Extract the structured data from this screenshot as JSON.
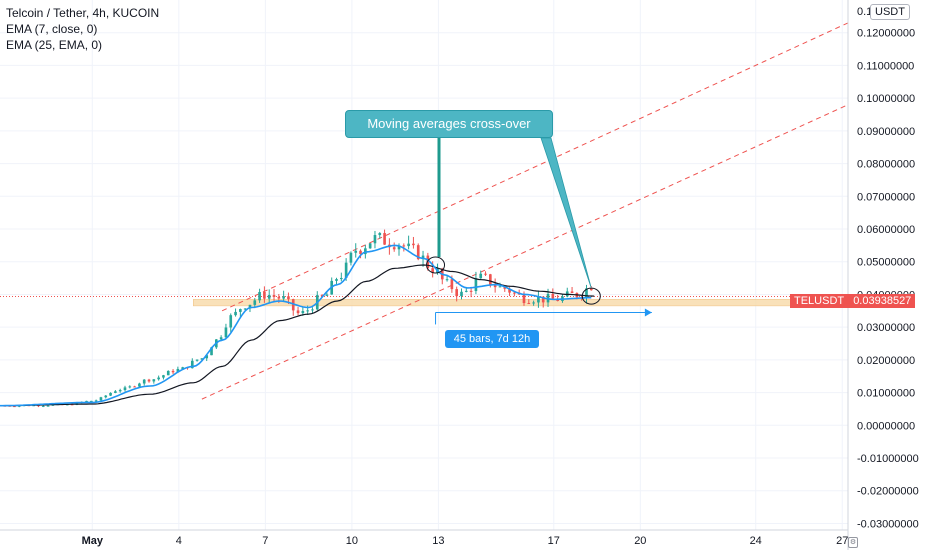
{
  "legend": {
    "symbol": "Telcoin / Tether, 4h, KUCOIN",
    "ema_fast": "EMA (7, close, 0)",
    "ema_slow": "EMA (25, EMA, 0)"
  },
  "currency_label": "USDT",
  "price_tag": {
    "symbol": "TELUSDT",
    "value": "0.03938527"
  },
  "annotations": {
    "callout": "Moving averages cross-over",
    "range_measure": "45 bars, 7d 12h"
  },
  "colors": {
    "up": "#26a69a",
    "down": "#ef5350",
    "ema_fast": "#2196f3",
    "ema_slow": "#131722",
    "channel": "#ef5350",
    "support_zone": "#f8d9a8",
    "callout_bg": "#4db6c4",
    "measure": "#2196f3"
  },
  "chart_data": {
    "type": "candlestick",
    "y_axis": {
      "range": [
        -0.032,
        0.13
      ],
      "tick_values": [
        0.12,
        0.11,
        0.1,
        0.09,
        0.08,
        0.07,
        0.06,
        0.05,
        0.04,
        0.03,
        0.02,
        0.01,
        0.0,
        -0.01,
        -0.02,
        -0.03
      ],
      "tick_labels": [
        "0.12000000",
        "0.11000000",
        "0.10000000",
        "0.09000000",
        "0.08000000",
        "0.07000000",
        "0.06000000",
        "0.05000000",
        "0.04000000",
        "0.03000000",
        "0.02000000",
        "0.01000000",
        "0.00000000",
        "-0.01000000",
        "-0.02000000",
        "-0.03000000"
      ],
      "top_partial_label": "0.1"
    },
    "x_axis": {
      "range_days": [
        -2.2,
        27.2
      ],
      "ticks": [
        {
          "day": 1,
          "label": "May"
        },
        {
          "day": 4,
          "label": "4"
        },
        {
          "day": 7,
          "label": "7"
        },
        {
          "day": 10,
          "label": "10"
        },
        {
          "day": 13,
          "label": "13"
        },
        {
          "day": 17,
          "label": "17"
        },
        {
          "day": 20,
          "label": "20"
        },
        {
          "day": 24,
          "label": "24"
        },
        {
          "day": 27,
          "label": "27"
        }
      ]
    },
    "price_anchors": [
      [
        -2.2,
        0.006
      ],
      [
        0.0,
        0.0062
      ],
      [
        1.0,
        0.0075
      ],
      [
        2.0,
        0.011
      ],
      [
        3.0,
        0.014
      ],
      [
        4.0,
        0.017
      ],
      [
        4.8,
        0.0205
      ],
      [
        5.3,
        0.026
      ],
      [
        5.8,
        0.033
      ],
      [
        6.3,
        0.037
      ],
      [
        7.0,
        0.04
      ],
      [
        7.5,
        0.039
      ],
      [
        8.2,
        0.034
      ],
      [
        9.0,
        0.039
      ],
      [
        9.6,
        0.046
      ],
      [
        10.2,
        0.054
      ],
      [
        10.8,
        0.057
      ],
      [
        11.5,
        0.056
      ],
      [
        12.2,
        0.053
      ],
      [
        12.8,
        0.048
      ],
      [
        13.3,
        0.043
      ],
      [
        13.8,
        0.04
      ],
      [
        14.5,
        0.045
      ],
      [
        15.2,
        0.042
      ],
      [
        16.0,
        0.039
      ],
      [
        17.0,
        0.0385
      ],
      [
        17.8,
        0.04
      ],
      [
        18.4,
        0.043
      ]
    ],
    "ema7_anchors": [
      [
        -2.2,
        0.006
      ],
      [
        1.0,
        0.007
      ],
      [
        3.0,
        0.012
      ],
      [
        4.5,
        0.018
      ],
      [
        5.5,
        0.026
      ],
      [
        6.5,
        0.036
      ],
      [
        7.5,
        0.038
      ],
      [
        8.5,
        0.036
      ],
      [
        9.5,
        0.043
      ],
      [
        10.5,
        0.053
      ],
      [
        11.5,
        0.055
      ],
      [
        12.5,
        0.051
      ],
      [
        13.2,
        0.046
      ],
      [
        14.0,
        0.042
      ],
      [
        15.0,
        0.043
      ],
      [
        16.0,
        0.04
      ],
      [
        17.0,
        0.0385
      ],
      [
        18.3,
        0.039
      ]
    ],
    "ema25_anchors": [
      [
        -2.2,
        0.006
      ],
      [
        1.0,
        0.0065
      ],
      [
        3.0,
        0.0095
      ],
      [
        4.5,
        0.013
      ],
      [
        5.5,
        0.018
      ],
      [
        6.5,
        0.026
      ],
      [
        7.5,
        0.032
      ],
      [
        8.5,
        0.034
      ],
      [
        9.5,
        0.038
      ],
      [
        10.5,
        0.044
      ],
      [
        11.5,
        0.048
      ],
      [
        12.5,
        0.049
      ],
      [
        13.5,
        0.047
      ],
      [
        14.5,
        0.0445
      ],
      [
        15.5,
        0.0425
      ],
      [
        16.5,
        0.041
      ],
      [
        17.5,
        0.04
      ],
      [
        18.4,
        0.0395
      ]
    ],
    "channel_upper": {
      "from": [
        5.5,
        0.035
      ],
      "to": [
        27.2,
        0.123
      ]
    },
    "channel_lower": {
      "from": [
        4.8,
        0.008
      ],
      "to": [
        27.2,
        0.098
      ]
    },
    "support_zone": {
      "from_day": 4.5,
      "to_day": 27.2,
      "low": 0.0365,
      "high": 0.0385
    },
    "current_price": 0.03938527,
    "crossover_points": [
      [
        12.9,
        0.049
      ],
      [
        18.3,
        0.0395
      ]
    ],
    "measure": {
      "from_day": 12.9,
      "to_day": 20.4,
      "price": 0.0345
    }
  }
}
